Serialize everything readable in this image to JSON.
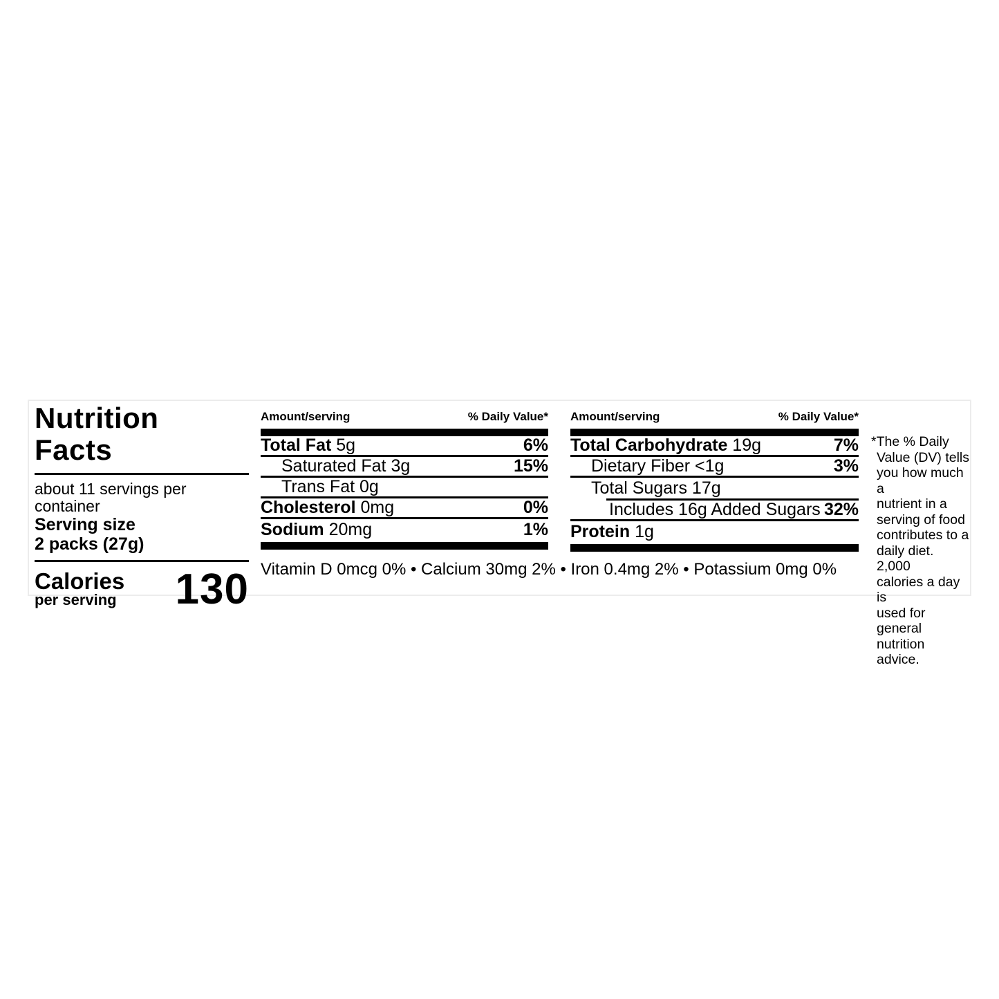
{
  "label": {
    "title_line1": "Nutrition",
    "title_line2": "Facts",
    "servings_per_container": "about 11 servings per container",
    "serving_size_label": "Serving size",
    "serving_size_value": "2 packs (27g)",
    "calories_label": "Calories",
    "calories_sublabel": "per serving",
    "calories_value": "130",
    "columns": [
      {
        "header_amount": "Amount/serving",
        "header_dv": "% Daily Value*",
        "rows": [
          {
            "name": "Total Fat",
            "value": "5g",
            "dv": "6%",
            "bold": true,
            "indent": 0,
            "sep": "full"
          },
          {
            "name": "Saturated Fat",
            "value": "3g",
            "dv": "15%",
            "bold": false,
            "indent": 1,
            "sep": "full"
          },
          {
            "name": "Trans Fat",
            "value": "0g",
            "dv": "",
            "bold": false,
            "indent": 1,
            "sep": "full"
          },
          {
            "name": "Cholesterol",
            "value": "0mg",
            "dv": "0%",
            "bold": true,
            "indent": 0,
            "sep": "full"
          },
          {
            "name": "Sodium",
            "value": "20mg",
            "dv": "1%",
            "bold": true,
            "indent": 0,
            "sep": "none"
          }
        ]
      },
      {
        "header_amount": "Amount/serving",
        "header_dv": "% Daily Value*",
        "rows": [
          {
            "name": "Total Carbohydrate",
            "value": "19g",
            "dv": "7%",
            "bold": true,
            "indent": 0,
            "sep": "full"
          },
          {
            "name": "Dietary Fiber",
            "value": "<1g",
            "dv": "3%",
            "bold": false,
            "indent": 1,
            "sep": "full"
          },
          {
            "name": "Total Sugars",
            "value": "17g",
            "dv": "",
            "bold": false,
            "indent": 1,
            "sep": "indented"
          },
          {
            "name": "Includes 16g Added Sugars",
            "value": "",
            "dv": "32%",
            "bold": false,
            "indent": 2,
            "sep": "full"
          },
          {
            "name": "Protein",
            "value": "1g",
            "dv": "",
            "bold": true,
            "indent": 0,
            "sep": "none"
          }
        ]
      }
    ],
    "micronutrients": "Vitamin D 0mcg 0% • Calcium 30mg 2% • Iron 0.4mg 2% • Potassium 0mg 0%",
    "footnote": "*The % Daily\nValue (DV) tells\nyou how much a\nnutrient in a\nserving of food\ncontributes to a\ndaily diet. 2,000\ncalories a day is\nused for general\nnutrition advice."
  }
}
